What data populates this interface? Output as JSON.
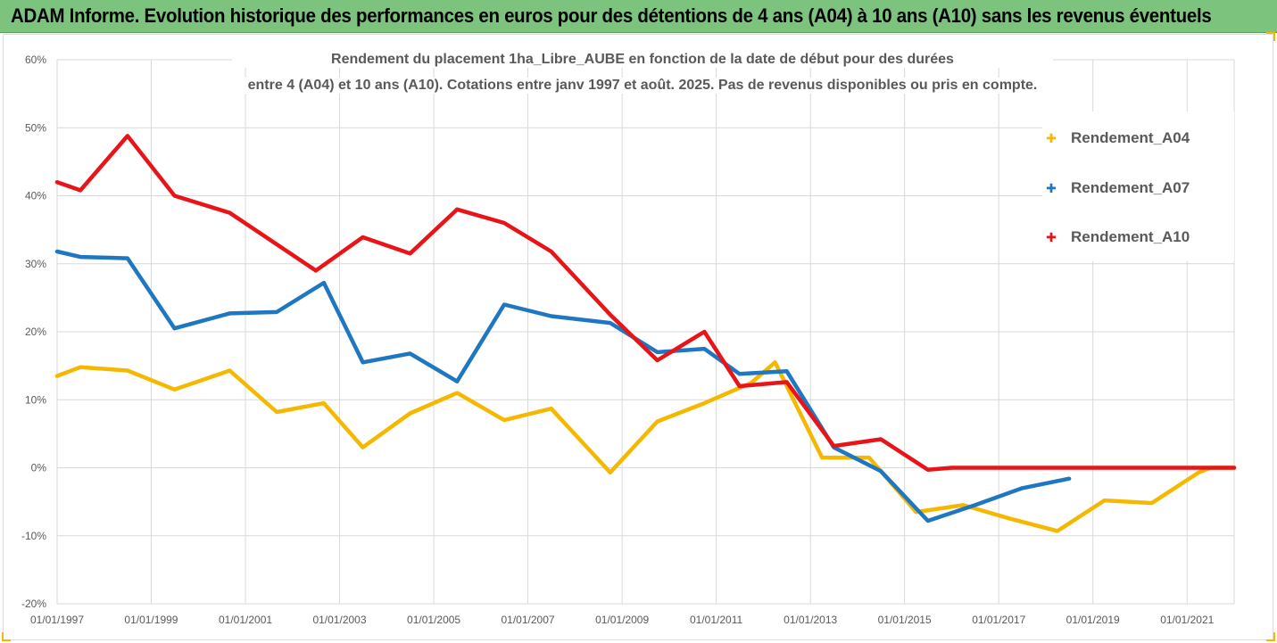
{
  "header": {
    "title": "ADAM Informe. Evolution historique des performances en euros pour des détentions de 4 ans (A04) à 10 ans (A10) sans les revenus éventuels",
    "background": "#7cc47d"
  },
  "chart_data": {
    "type": "line",
    "title_line1": "Rendement du placement 1ha_Libre_AUBE en fonction de la date de début pour des durées",
    "title_line2": "entre 4 (A04) et 10 ans (A10). Cotations entre janv 1997 et août. 2025. Pas de revenus disponibles ou pris en compte.",
    "xlabel": "",
    "ylabel": "",
    "x_tick_labels": [
      "01/01/1997",
      "01/01/1999",
      "01/01/2001",
      "01/01/2003",
      "01/01/2005",
      "01/01/2007",
      "01/01/2009",
      "01/01/2011",
      "01/01/2013",
      "01/01/2015",
      "01/01/2017",
      "01/01/2019",
      "01/01/2021"
    ],
    "y_tick_labels": [
      "60%",
      "50%",
      "40%",
      "30%",
      "20%",
      "10%",
      "0%",
      "-10%",
      "-20%"
    ],
    "xlim": [
      "1997-01-01",
      "2022-01-01"
    ],
    "ylim": [
      -20,
      60
    ],
    "y_unit": "%",
    "grid": true,
    "legend_position": "right",
    "series": [
      {
        "name": "Rendement_A04",
        "color": "#f5b800",
        "points": [
          [
            "1997-01-01",
            13.5
          ],
          [
            "1997-07-01",
            14.8
          ],
          [
            "1998-07-01",
            14.3
          ],
          [
            "1999-07-01",
            11.5
          ],
          [
            "2000-09-01",
            14.3
          ],
          [
            "2001-09-01",
            8.2
          ],
          [
            "2002-09-01",
            9.5
          ],
          [
            "2003-07-01",
            3.0
          ],
          [
            "2004-07-01",
            8.0
          ],
          [
            "2005-07-01",
            11.0
          ],
          [
            "2006-07-01",
            7.0
          ],
          [
            "2007-07-01",
            8.7
          ],
          [
            "2008-10-01",
            -0.7
          ],
          [
            "2009-10-01",
            6.8
          ],
          [
            "2010-10-01",
            9.5
          ],
          [
            "2011-10-01",
            12.5
          ],
          [
            "2012-04-01",
            15.5
          ],
          [
            "2013-04-01",
            1.5
          ],
          [
            "2014-04-01",
            1.5
          ],
          [
            "2015-04-01",
            -6.5
          ],
          [
            "2016-04-01",
            -5.5
          ],
          [
            "2017-04-01",
            -7.5
          ],
          [
            "2018-04-01",
            -9.3
          ],
          [
            "2019-04-01",
            -4.8
          ],
          [
            "2020-04-01",
            -5.2
          ],
          [
            "2021-04-01",
            -0.7
          ],
          [
            "2021-07-01",
            0.0
          ],
          [
            "2022-01-01",
            0.0
          ]
        ]
      },
      {
        "name": "Rendement_A07",
        "color": "#1f77c2",
        "points": [
          [
            "1997-01-01",
            31.8
          ],
          [
            "1997-07-01",
            31.0
          ],
          [
            "1998-07-01",
            30.8
          ],
          [
            "1999-07-01",
            20.5
          ],
          [
            "2000-09-01",
            22.7
          ],
          [
            "2001-09-01",
            22.9
          ],
          [
            "2002-09-01",
            27.2
          ],
          [
            "2003-07-01",
            15.5
          ],
          [
            "2004-07-01",
            16.8
          ],
          [
            "2005-07-01",
            12.7
          ],
          [
            "2006-07-01",
            24.0
          ],
          [
            "2007-07-01",
            22.3
          ],
          [
            "2008-10-01",
            21.3
          ],
          [
            "2009-10-01",
            17.0
          ],
          [
            "2010-10-01",
            17.5
          ],
          [
            "2011-07-01",
            13.8
          ],
          [
            "2012-07-01",
            14.2
          ],
          [
            "2013-07-01",
            3.0
          ],
          [
            "2014-07-01",
            -0.5
          ],
          [
            "2015-07-01",
            -7.8
          ],
          [
            "2016-07-01",
            -5.5
          ],
          [
            "2017-07-01",
            -3.0
          ],
          [
            "2018-07-01",
            -1.6
          ]
        ]
      },
      {
        "name": "Rendement_A10",
        "color": "#e81418",
        "points": [
          [
            "1997-01-01",
            42.0
          ],
          [
            "1997-07-01",
            40.8
          ],
          [
            "1998-07-01",
            48.8
          ],
          [
            "1999-07-01",
            40.0
          ],
          [
            "2000-09-01",
            37.5
          ],
          [
            "2002-07-01",
            29.0
          ],
          [
            "2003-07-01",
            33.9
          ],
          [
            "2004-07-01",
            31.5
          ],
          [
            "2005-07-01",
            38.0
          ],
          [
            "2006-07-01",
            36.0
          ],
          [
            "2007-07-01",
            31.8
          ],
          [
            "2008-10-01",
            22.5
          ],
          [
            "2009-10-01",
            15.8
          ],
          [
            "2010-10-01",
            20.0
          ],
          [
            "2011-07-01",
            12.0
          ],
          [
            "2012-07-01",
            12.6
          ],
          [
            "2013-07-01",
            3.2
          ],
          [
            "2014-07-01",
            4.2
          ],
          [
            "2015-07-01",
            -0.3
          ],
          [
            "2016-01-01",
            0.0
          ],
          [
            "2022-01-01",
            0.0
          ]
        ]
      }
    ]
  }
}
